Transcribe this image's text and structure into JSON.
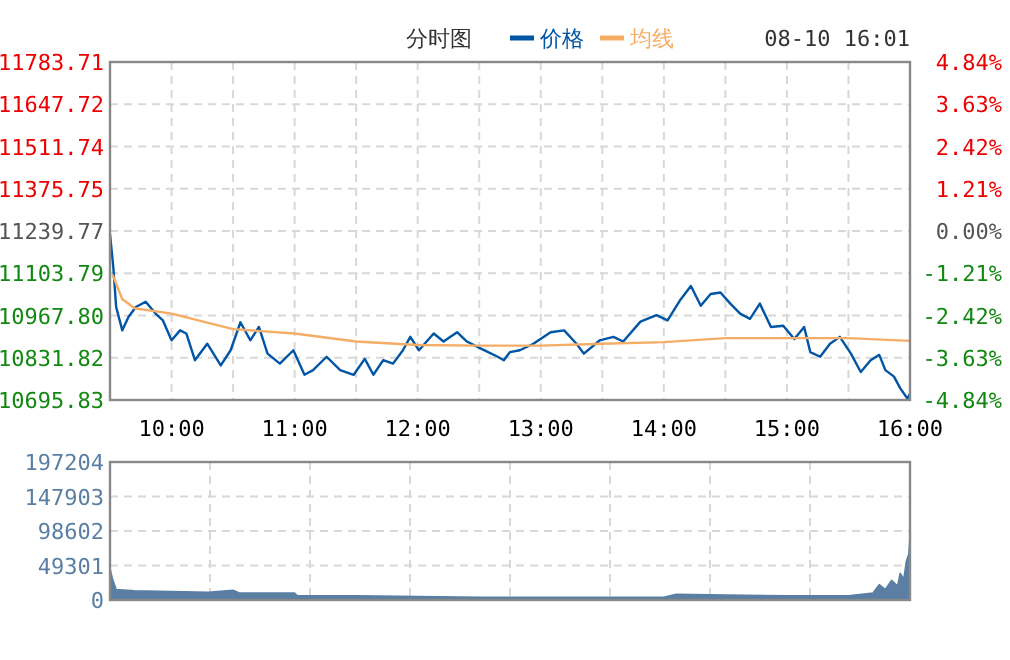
{
  "chart_data": [
    {
      "type": "line",
      "title": "分时图",
      "legend": "top",
      "grid": true,
      "annotations": [
        "08-10 16:01"
      ],
      "xlim": [
        9.5,
        16
      ],
      "xticks": [
        {
          "value": 10,
          "label": "10:00"
        },
        {
          "value": 10.5,
          "label": null
        },
        {
          "value": 11,
          "label": "11:00"
        },
        {
          "value": 11.5,
          "label": null
        },
        {
          "value": 12,
          "label": "12:00"
        },
        {
          "value": 12.5,
          "label": null
        },
        {
          "value": 13,
          "label": "13:00"
        },
        {
          "value": 13.5,
          "label": null
        },
        {
          "value": 14,
          "label": "14:00"
        },
        {
          "value": 14.5,
          "label": null
        },
        {
          "value": 15,
          "label": "15:00"
        },
        {
          "value": 15.5,
          "label": null
        },
        {
          "value": 16,
          "label": "16:00"
        }
      ],
      "ylim": [
        10695.83,
        11783.71
      ],
      "yticks": [
        10695.83,
        10831.82,
        {
          "value": 10967.8,
          "label": "10967.80"
        },
        11103.79,
        11239.77,
        11375.75,
        11511.74,
        11647.72,
        11783.71
      ],
      "y2lim": [
        -4.84,
        4.84
      ],
      "y2ticks": [
        {
          "value": -4.84,
          "label": "-4.84%"
        },
        {
          "value": -3.63,
          "label": "-3.63%"
        },
        {
          "value": -2.42,
          "label": "-2.42%"
        },
        {
          "value": -1.21,
          "label": "-1.21%"
        },
        {
          "value": 0,
          "label": "0.00%"
        },
        {
          "value": 1.21,
          "label": "1.21%"
        },
        {
          "value": 2.42,
          "label": "2.42%"
        },
        {
          "value": 3.63,
          "label": "3.63%"
        },
        {
          "value": 4.84,
          "label": "4.84%"
        }
      ],
      "series": [
        {
          "name": "价格",
          "color": "#0055a5",
          "x": [
            9.5,
            9.527,
            9.55,
            9.6,
            9.65,
            9.71,
            9.79,
            9.87,
            9.93,
            10.0,
            10.07,
            10.12,
            10.19,
            10.29,
            10.4,
            10.48,
            10.56,
            10.64,
            10.71,
            10.78,
            10.88,
            10.99,
            11.08,
            11.15,
            11.26,
            11.37,
            11.48,
            11.57,
            11.64,
            11.72,
            11.8,
            11.88,
            11.94,
            12.01,
            12.13,
            12.21,
            12.32,
            12.4,
            12.51,
            12.65,
            12.7,
            12.75,
            12.83,
            12.94,
            13.08,
            13.19,
            13.29,
            13.35,
            13.48,
            13.59,
            13.67,
            13.81,
            13.94,
            14.03,
            14.13,
            14.22,
            14.3,
            14.38,
            14.46,
            14.54,
            14.62,
            14.7,
            14.78,
            14.87,
            14.97,
            15.06,
            15.14,
            15.19,
            15.27,
            15.35,
            15.43,
            15.52,
            15.6,
            15.68,
            15.75,
            15.8,
            15.87,
            15.92,
            15.98,
            16.0
          ],
          "values": [
            11230,
            11123,
            10995,
            10920,
            10963,
            10995,
            11012,
            10974,
            10952,
            10888,
            10920,
            10910,
            10824,
            10877,
            10807,
            10856,
            10946,
            10888,
            10931,
            10845,
            10813,
            10856,
            10777,
            10792,
            10835,
            10792,
            10777,
            10828,
            10777,
            10824,
            10813,
            10856,
            10899,
            10856,
            10910,
            10884,
            10914,
            10884,
            10862,
            10835,
            10824,
            10850,
            10856,
            10877,
            10914,
            10920,
            10877,
            10845,
            10888,
            10899,
            10884,
            10948,
            10969,
            10952,
            11016,
            11063,
            10999,
            11037,
            11042,
            11006,
            10974,
            10957,
            11006,
            10931,
            10935,
            10892,
            10931,
            10850,
            10835,
            10877,
            10899,
            10845,
            10786,
            10824,
            10841,
            10792,
            10771,
            10734,
            10700,
            10717
          ]
        },
        {
          "name": "均线",
          "color": "#f5ad66",
          "x": [
            9.52,
            9.6,
            9.7,
            10.0,
            10.5,
            11.0,
            11.5,
            12.0,
            12.5,
            13.0,
            13.5,
            14.0,
            14.5,
            15.0,
            15.5,
            16.0
          ],
          "values": [
            11100,
            11020,
            10991,
            10974,
            10924,
            10910,
            10884,
            10873,
            10871,
            10871,
            10877,
            10882,
            10895,
            10895,
            10895,
            10886
          ]
        }
      ]
    },
    {
      "type": "area",
      "grid": true,
      "tick_labels": "y",
      "xlim": [
        9.5,
        16
      ],
      "xticks": [
        {
          "value": 10.3125,
          "label": null
        },
        {
          "value": 11.125,
          "label": null
        },
        {
          "value": 11.9375,
          "label": null
        },
        {
          "value": 12.75,
          "label": null
        },
        {
          "value": 13.5625,
          "label": null
        },
        {
          "value": 14.375,
          "label": null
        },
        {
          "value": 15.1875,
          "label": null
        }
      ],
      "ylim": [
        0,
        197204
      ],
      "yticks": [
        0,
        49301,
        98602,
        147903,
        197204
      ],
      "series": [
        {
          "color": "#5a7fa3",
          "x": [
            9.5,
            9.52,
            9.55,
            9.7,
            10.0,
            10.3,
            10.5,
            10.55,
            11.0,
            11.02,
            11.5,
            12.0,
            12.5,
            13.0,
            13.5,
            14.0,
            14.1,
            14.5,
            15.0,
            15.5,
            15.7,
            15.75,
            15.8,
            15.85,
            15.9,
            15.92,
            15.95,
            15.97,
            15.99,
            16.0
          ],
          "values": [
            45000,
            30000,
            15000,
            13000,
            12000,
            11000,
            14000,
            10000,
            10000,
            6000,
            6000,
            5000,
            4000,
            4000,
            4000,
            4000,
            8000,
            7000,
            6000,
            6000,
            10000,
            22000,
            15000,
            28000,
            20000,
            38000,
            30000,
            55000,
            65000,
            90000
          ]
        }
      ]
    }
  ]
}
